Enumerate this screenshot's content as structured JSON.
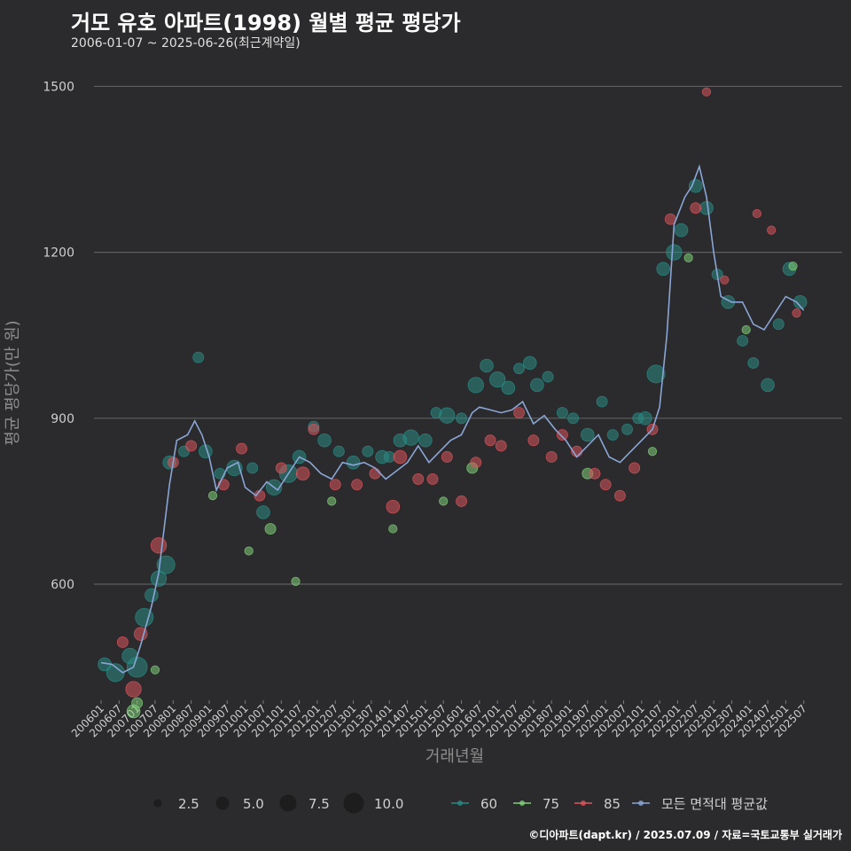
{
  "header": {
    "title": "거모 유호 아파트(1998) 월별 평균 평당가",
    "subtitle": "2006-01-07 ~ 2025-06-26(최근계약일)"
  },
  "caption": "©디아파트(dapt.kr) / 2025.07.09 / 자료=국토교통부 실거래가",
  "colors": {
    "background": "#2b2a2c",
    "grid": "#5f5f5f",
    "s60": "#2a8a85",
    "s75": "#7fd07a",
    "s85": "#d9545c",
    "avg": "#8aa6d6"
  },
  "chart_data": {
    "type": "scatter",
    "title": "거모 유호 아파트(1998) 월별 평균 평당가",
    "xlabel": "거래년월",
    "ylabel": "평균 평당가(만 원)",
    "ylim": [
      390,
      1560
    ],
    "yticks": [
      600,
      900,
      1200,
      1500
    ],
    "xticks": [
      "200601",
      "200607",
      "200701",
      "200707",
      "200801",
      "200807",
      "200901",
      "200907",
      "201001",
      "201007",
      "201101",
      "201107",
      "201201",
      "201207",
      "201301",
      "201307",
      "201401",
      "201407",
      "201501",
      "201507",
      "201601",
      "201607",
      "201701",
      "201707",
      "201801",
      "201807",
      "201901",
      "201907",
      "202001",
      "202007",
      "202101",
      "202107",
      "202201",
      "202207",
      "202301",
      "202307",
      "202401",
      "202407",
      "202501",
      "202507"
    ],
    "size_legend": {
      "title": "",
      "values": [
        "2.5",
        "5.0",
        "7.5",
        "10.0"
      ]
    },
    "color_legend": [
      "60",
      "75",
      "85",
      "모든 면적대 평균값"
    ],
    "avg_line": {
      "name": "모든 면적대 평균값",
      "x": [
        2006.0,
        2006.3,
        2006.6,
        2006.9,
        2007.1,
        2007.4,
        2007.6,
        2007.9,
        2008.1,
        2008.4,
        2008.6,
        2008.8,
        2009.0,
        2009.2,
        2009.5,
        2009.8,
        2010.0,
        2010.3,
        2010.6,
        2010.9,
        2011.2,
        2011.5,
        2011.8,
        2012.1,
        2012.4,
        2012.7,
        2013.0,
        2013.3,
        2013.6,
        2013.9,
        2014.2,
        2014.5,
        2014.8,
        2015.1,
        2015.4,
        2015.7,
        2016.0,
        2016.3,
        2016.5,
        2016.8,
        2017.1,
        2017.4,
        2017.7,
        2018.0,
        2018.3,
        2018.6,
        2018.9,
        2019.2,
        2019.5,
        2019.8,
        2020.1,
        2020.4,
        2020.7,
        2021.0,
        2021.3,
        2021.5,
        2021.7,
        2021.9,
        2022.2,
        2022.4,
        2022.6,
        2022.8,
        2023.0,
        2023.2,
        2023.5,
        2023.8,
        2024.1,
        2024.4,
        2024.7,
        2025.0,
        2025.3,
        2025.5
      ],
      "y": [
        458,
        455,
        440,
        450,
        490,
        560,
        620,
        780,
        860,
        870,
        895,
        870,
        830,
        770,
        810,
        820,
        775,
        760,
        785,
        770,
        800,
        830,
        820,
        800,
        790,
        820,
        815,
        820,
        810,
        790,
        805,
        820,
        850,
        820,
        840,
        860,
        870,
        910,
        920,
        915,
        910,
        915,
        930,
        890,
        905,
        880,
        860,
        830,
        850,
        870,
        830,
        820,
        840,
        860,
        880,
        920,
        1050,
        1250,
        1300,
        1320,
        1355,
        1300,
        1200,
        1120,
        1110,
        1110,
        1070,
        1060,
        1090,
        1120,
        1110,
        1095
      ]
    },
    "series": [
      {
        "name": "60",
        "points": [
          [
            2006.1,
            455,
            4
          ],
          [
            2006.4,
            440,
            6
          ],
          [
            2006.8,
            470,
            5
          ],
          [
            2007.0,
            450,
            7
          ],
          [
            2007.2,
            540,
            6
          ],
          [
            2007.4,
            580,
            4
          ],
          [
            2007.6,
            610,
            5
          ],
          [
            2007.8,
            635,
            6
          ],
          [
            2007.9,
            820,
            4
          ],
          [
            2008.3,
            840,
            3
          ],
          [
            2008.7,
            1010,
            3
          ],
          [
            2008.9,
            840,
            4
          ],
          [
            2009.3,
            800,
            3
          ],
          [
            2009.7,
            810,
            5
          ],
          [
            2010.2,
            810,
            3
          ],
          [
            2010.5,
            730,
            4
          ],
          [
            2010.8,
            775,
            5
          ],
          [
            2011.2,
            800,
            6
          ],
          [
            2011.5,
            830,
            4
          ],
          [
            2011.9,
            885,
            3
          ],
          [
            2012.2,
            860,
            4
          ],
          [
            2012.6,
            840,
            3
          ],
          [
            2013.0,
            820,
            4
          ],
          [
            2013.4,
            840,
            3
          ],
          [
            2013.8,
            830,
            4
          ],
          [
            2014.0,
            830,
            3
          ],
          [
            2014.3,
            860,
            4
          ],
          [
            2014.6,
            865,
            5
          ],
          [
            2015.0,
            860,
            4
          ],
          [
            2015.3,
            910,
            3
          ],
          [
            2015.6,
            905,
            5
          ],
          [
            2016.0,
            900,
            3
          ],
          [
            2016.4,
            960,
            5
          ],
          [
            2016.7,
            995,
            4
          ],
          [
            2017.0,
            970,
            5
          ],
          [
            2017.3,
            955,
            4
          ],
          [
            2017.6,
            990,
            3
          ],
          [
            2017.9,
            1000,
            4
          ],
          [
            2018.1,
            960,
            4
          ],
          [
            2018.4,
            975,
            3
          ],
          [
            2018.8,
            910,
            3
          ],
          [
            2019.1,
            900,
            3
          ],
          [
            2019.5,
            870,
            4
          ],
          [
            2019.9,
            930,
            3
          ],
          [
            2020.2,
            870,
            3
          ],
          [
            2020.6,
            880,
            3
          ],
          [
            2020.9,
            900,
            3
          ],
          [
            2021.1,
            900,
            4
          ],
          [
            2021.4,
            980,
            6
          ],
          [
            2021.6,
            1170,
            4
          ],
          [
            2021.9,
            1200,
            5
          ],
          [
            2022.1,
            1240,
            4
          ],
          [
            2022.5,
            1320,
            4
          ],
          [
            2022.8,
            1280,
            4
          ],
          [
            2023.1,
            1160,
            3
          ],
          [
            2023.4,
            1110,
            4
          ],
          [
            2023.8,
            1040,
            3
          ],
          [
            2024.1,
            1000,
            3
          ],
          [
            2024.5,
            960,
            4
          ],
          [
            2024.8,
            1070,
            3
          ],
          [
            2025.1,
            1170,
            4
          ],
          [
            2025.4,
            1110,
            4
          ]
        ]
      },
      {
        "name": "75",
        "points": [
          [
            2006.9,
            370,
            4
          ],
          [
            2007.0,
            385,
            3
          ],
          [
            2007.5,
            445,
            2
          ],
          [
            2009.1,
            760,
            2
          ],
          [
            2010.1,
            660,
            2
          ],
          [
            2010.7,
            700,
            3
          ],
          [
            2011.4,
            605,
            2
          ],
          [
            2012.4,
            750,
            2
          ],
          [
            2014.1,
            700,
            2
          ],
          [
            2015.5,
            750,
            2
          ],
          [
            2016.3,
            810,
            3
          ],
          [
            2019.5,
            800,
            3
          ],
          [
            2021.3,
            840,
            2
          ],
          [
            2022.3,
            1190,
            2
          ],
          [
            2023.9,
            1060,
            2
          ],
          [
            2025.2,
            1175,
            2
          ]
        ]
      },
      {
        "name": "85",
        "points": [
          [
            2006.6,
            495,
            3
          ],
          [
            2006.9,
            410,
            5
          ],
          [
            2007.1,
            510,
            4
          ],
          [
            2007.6,
            670,
            5
          ],
          [
            2008.0,
            820,
            3
          ],
          [
            2008.5,
            850,
            3
          ],
          [
            2009.4,
            780,
            3
          ],
          [
            2009.9,
            845,
            3
          ],
          [
            2010.4,
            760,
            3
          ],
          [
            2011.0,
            810,
            3
          ],
          [
            2011.6,
            800,
            4
          ],
          [
            2011.9,
            880,
            3
          ],
          [
            2012.5,
            780,
            3
          ],
          [
            2013.1,
            780,
            3
          ],
          [
            2013.6,
            800,
            3
          ],
          [
            2014.1,
            740,
            4
          ],
          [
            2014.3,
            830,
            4
          ],
          [
            2014.8,
            790,
            3
          ],
          [
            2015.2,
            790,
            3
          ],
          [
            2015.6,
            830,
            3
          ],
          [
            2016.0,
            750,
            3
          ],
          [
            2016.4,
            820,
            3
          ],
          [
            2016.8,
            860,
            3
          ],
          [
            2017.1,
            850,
            3
          ],
          [
            2017.6,
            910,
            3
          ],
          [
            2018.0,
            860,
            3
          ],
          [
            2018.5,
            830,
            3
          ],
          [
            2018.8,
            870,
            3
          ],
          [
            2019.2,
            840,
            3
          ],
          [
            2019.7,
            800,
            3
          ],
          [
            2020.0,
            780,
            3
          ],
          [
            2020.4,
            760,
            3
          ],
          [
            2020.8,
            810,
            3
          ],
          [
            2021.3,
            880,
            3
          ],
          [
            2021.8,
            1260,
            3
          ],
          [
            2022.5,
            1280,
            3
          ],
          [
            2022.8,
            1490,
            2
          ],
          [
            2023.3,
            1150,
            2
          ],
          [
            2024.2,
            1270,
            2
          ],
          [
            2024.6,
            1240,
            2
          ],
          [
            2025.3,
            1090,
            2
          ]
        ]
      }
    ]
  }
}
